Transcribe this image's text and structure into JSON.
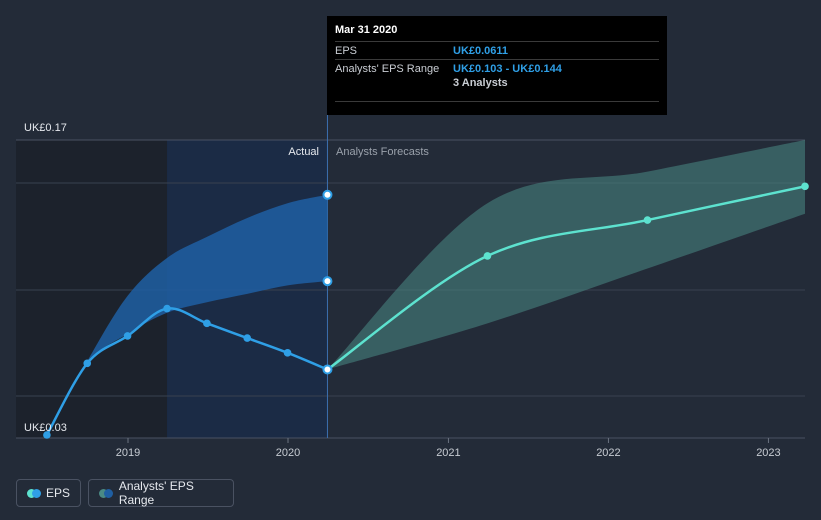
{
  "chart_data": {
    "type": "line",
    "y_axis": {
      "top_label": "UK£0.17",
      "bottom_label": "UK£0.03",
      "ylim": [
        0.03,
        0.17
      ]
    },
    "x_axis": {
      "ticks": [
        "2019",
        "2020",
        "2021",
        "2022",
        "2023"
      ]
    },
    "region_labels": {
      "actual": "Actual",
      "forecast": "Analysts Forecasts"
    },
    "series": [
      {
        "name": "EPS",
        "kind": "actual",
        "color": "#2f9fe6",
        "points": [
          [
            "2018-06-30",
            0.03
          ],
          [
            "2018-09-30",
            0.064
          ],
          [
            "2018-12-31",
            0.077
          ],
          [
            "2019-03-31",
            0.09
          ],
          [
            "2019-06-30",
            0.083
          ],
          [
            "2019-09-30",
            0.076
          ],
          [
            "2019-12-31",
            0.069
          ],
          [
            "2020-03-31",
            0.0611
          ]
        ]
      },
      {
        "name": "EPS",
        "kind": "forecast",
        "color": "#5de2cf",
        "points": [
          [
            "2020-03-31",
            0.0611
          ],
          [
            "2021-03-31",
            0.115
          ],
          [
            "2022-03-31",
            0.132
          ],
          [
            "2023-03-31",
            0.148
          ]
        ]
      },
      {
        "name": "Analysts' EPS Range",
        "kind": "range_actual",
        "color": "#1f5fa3",
        "points": [
          [
            "2018-06-30",
            0.03,
            0.03
          ],
          [
            "2018-09-30",
            0.064,
            0.065
          ],
          [
            "2018-12-31",
            0.078,
            0.096
          ],
          [
            "2019-03-31",
            0.088,
            0.114
          ],
          [
            "2019-06-30",
            0.093,
            0.124
          ],
          [
            "2019-09-30",
            0.097,
            0.133
          ],
          [
            "2019-12-31",
            0.101,
            0.14
          ],
          [
            "2020-03-31",
            0.103,
            0.144
          ]
        ]
      },
      {
        "name": "Analysts' EPS Range",
        "kind": "range_forecast",
        "color": "#4a8a85",
        "points": [
          [
            "2020-03-31",
            0.0611,
            0.0611
          ],
          [
            "2021-03-31",
            0.083,
            0.14
          ],
          [
            "2022-03-31",
            0.109,
            0.155
          ],
          [
            "2023-03-31",
            0.135,
            0.17
          ]
        ]
      }
    ]
  },
  "tooltip": {
    "date": "Mar 31 2020",
    "eps_label": "EPS",
    "eps_value": "UK£0.0611",
    "range_label": "Analysts' EPS Range",
    "range_value": "UK£0.103 - UK£0.144",
    "analysts": "3 Analysts"
  },
  "legend": {
    "eps": "EPS",
    "range": "Analysts' EPS Range"
  },
  "colors": {
    "background": "#232b38",
    "eps_actual": "#2f9fe6",
    "eps_forecast": "#5de2cf",
    "range_actual": "#1f5fa3",
    "range_forecast": "#4a8a85"
  }
}
